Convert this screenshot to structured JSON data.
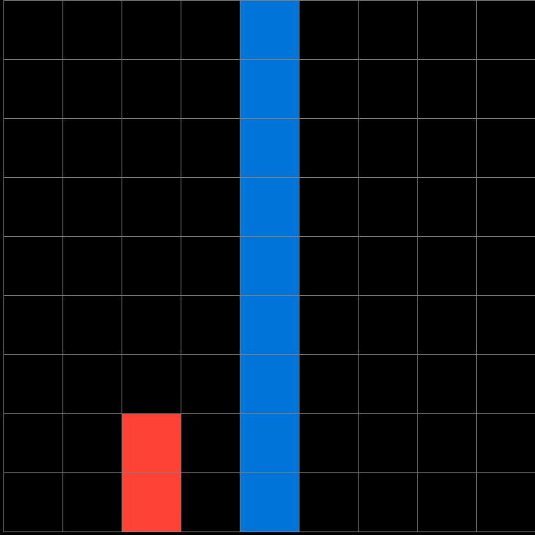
{
  "grid": {
    "rows": 9,
    "cols": 9,
    "colors": {
      "empty": "#000000",
      "grid_line": "#808080",
      "blue": "#0074D9",
      "red": "#FF4136"
    },
    "cells": [
      [
        "empty",
        "empty",
        "empty",
        "empty",
        "blue",
        "empty",
        "empty",
        "empty",
        "empty"
      ],
      [
        "empty",
        "empty",
        "empty",
        "empty",
        "blue",
        "empty",
        "empty",
        "empty",
        "empty"
      ],
      [
        "empty",
        "empty",
        "empty",
        "empty",
        "blue",
        "empty",
        "empty",
        "empty",
        "empty"
      ],
      [
        "empty",
        "empty",
        "empty",
        "empty",
        "blue",
        "empty",
        "empty",
        "empty",
        "empty"
      ],
      [
        "empty",
        "empty",
        "empty",
        "empty",
        "blue",
        "empty",
        "empty",
        "empty",
        "empty"
      ],
      [
        "empty",
        "empty",
        "empty",
        "empty",
        "blue",
        "empty",
        "empty",
        "empty",
        "empty"
      ],
      [
        "empty",
        "empty",
        "empty",
        "empty",
        "blue",
        "empty",
        "empty",
        "empty",
        "empty"
      ],
      [
        "empty",
        "empty",
        "red",
        "empty",
        "blue",
        "empty",
        "empty",
        "empty",
        "empty"
      ],
      [
        "empty",
        "empty",
        "red",
        "empty",
        "blue",
        "empty",
        "empty",
        "empty",
        "empty"
      ]
    ]
  }
}
